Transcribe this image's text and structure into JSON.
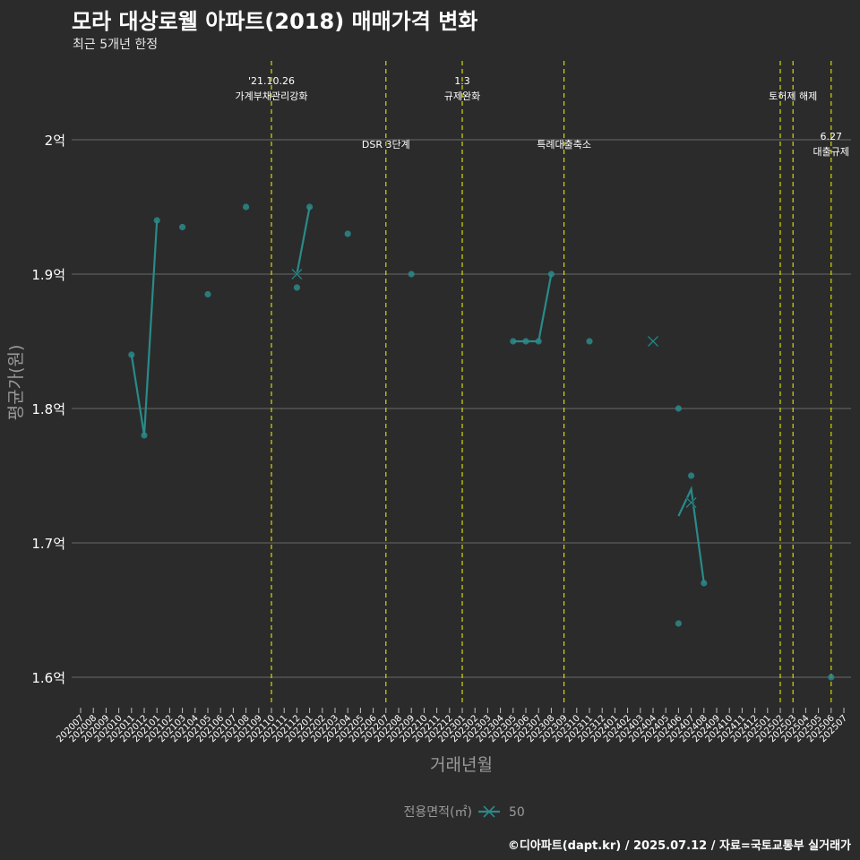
{
  "header": {
    "title": "모라 대상로웰 아파트(2018) 매매가격 변화",
    "subtitle": "최근 5개년 한정"
  },
  "caption": "©디아파트(dapt.kr) / 2025.07.12 / 자료=국토교통부 실거래가",
  "colors": {
    "background": "#2b2b2b",
    "series": "#2a8a8a",
    "event_line": "#e8e800",
    "grid": "#5e5e5e",
    "text": "#ffffff",
    "muted": "#9a9a9a"
  },
  "chart_data": {
    "type": "line",
    "xlabel": "거래년월",
    "ylabel": "평균가(원)",
    "ylim": [
      1.58,
      2.06
    ],
    "y_ticks": [
      {
        "value": 1.6,
        "label": "1.6억"
      },
      {
        "value": 1.7,
        "label": "1.7억"
      },
      {
        "value": 1.8,
        "label": "1.8억"
      },
      {
        "value": 1.9,
        "label": "1.9억"
      },
      {
        "value": 2.0,
        "label": "2억"
      }
    ],
    "categories": [
      "202007",
      "202008",
      "202009",
      "202010",
      "202011",
      "202012",
      "202101",
      "202102",
      "202103",
      "202104",
      "202105",
      "202106",
      "202107",
      "202108",
      "202109",
      "202110",
      "202111",
      "202112",
      "202201",
      "202202",
      "202203",
      "202204",
      "202205",
      "202206",
      "202207",
      "202208",
      "202209",
      "202210",
      "202211",
      "202212",
      "202301",
      "202302",
      "202303",
      "202304",
      "202305",
      "202306",
      "202307",
      "202308",
      "202309",
      "202310",
      "202311",
      "202312",
      "202401",
      "202402",
      "202403",
      "202404",
      "202405",
      "202406",
      "202407",
      "202408",
      "202409",
      "202410",
      "202411",
      "202412",
      "202501",
      "202502",
      "202503",
      "202504",
      "202505",
      "202506",
      "202507"
    ],
    "legend": {
      "title": "전용면적(㎡)",
      "label": "50",
      "position": "bottom"
    },
    "series": [
      {
        "name": "50",
        "line": [
          {
            "x": "202011",
            "y": 1.84
          },
          {
            "x": "202012",
            "y": 1.78
          },
          {
            "x": "202101",
            "y": 1.94
          },
          {
            "x": "202112",
            "y": 1.9
          },
          {
            "x": "202201",
            "y": 1.95
          },
          {
            "x": "202305",
            "y": 1.85
          },
          {
            "x": "202306",
            "y": 1.85
          },
          {
            "x": "202307",
            "y": 1.85
          },
          {
            "x": "202308",
            "y": 1.9
          },
          {
            "x": "202406",
            "y": 1.72
          },
          {
            "x": "202407",
            "y": 1.74
          },
          {
            "x": "202408",
            "y": 1.67
          }
        ],
        "points": [
          {
            "x": "202011",
            "y": 1.84
          },
          {
            "x": "202012",
            "y": 1.78
          },
          {
            "x": "202101",
            "y": 1.94
          },
          {
            "x": "202103",
            "y": 1.935
          },
          {
            "x": "202105",
            "y": 1.885
          },
          {
            "x": "202108",
            "y": 1.95
          },
          {
            "x": "202112",
            "y": 1.89
          },
          {
            "x": "202201",
            "y": 1.95
          },
          {
            "x": "202204",
            "y": 1.93
          },
          {
            "x": "202209",
            "y": 1.9
          },
          {
            "x": "202305",
            "y": 1.85
          },
          {
            "x": "202306",
            "y": 1.85
          },
          {
            "x": "202307",
            "y": 1.85
          },
          {
            "x": "202308",
            "y": 1.9
          },
          {
            "x": "202311",
            "y": 1.85
          },
          {
            "x": "202406",
            "y": 1.8
          },
          {
            "x": "202406",
            "y": 1.64
          },
          {
            "x": "202407",
            "y": 1.75
          },
          {
            "x": "202408",
            "y": 1.67
          },
          {
            "x": "202506",
            "y": 1.6
          }
        ],
        "cross_markers": [
          {
            "x": "202112",
            "y": 1.9
          },
          {
            "x": "202404",
            "y": 1.85
          },
          {
            "x": "202407",
            "y": 1.73
          }
        ]
      }
    ],
    "events": [
      {
        "x": "202110",
        "line1": "'21.10.26",
        "line2": "가계부채관리강화",
        "level": 1
      },
      {
        "x": "202207",
        "line1": "",
        "line2": "DSR 3단계",
        "level": 2
      },
      {
        "x": "202301",
        "line1": "1.3",
        "line2": "규제완화",
        "level": 1
      },
      {
        "x": "202309",
        "line1": "",
        "line2": "특례대출축소",
        "level": 2
      },
      {
        "x": "202502",
        "line1": "",
        "line2": "",
        "level": 0
      },
      {
        "x": "202503",
        "line1": "",
        "line2": "토허제 해제",
        "level": 1
      },
      {
        "x": "202506",
        "line1": "6.27",
        "line2": "대출규제",
        "level": 3
      }
    ]
  }
}
